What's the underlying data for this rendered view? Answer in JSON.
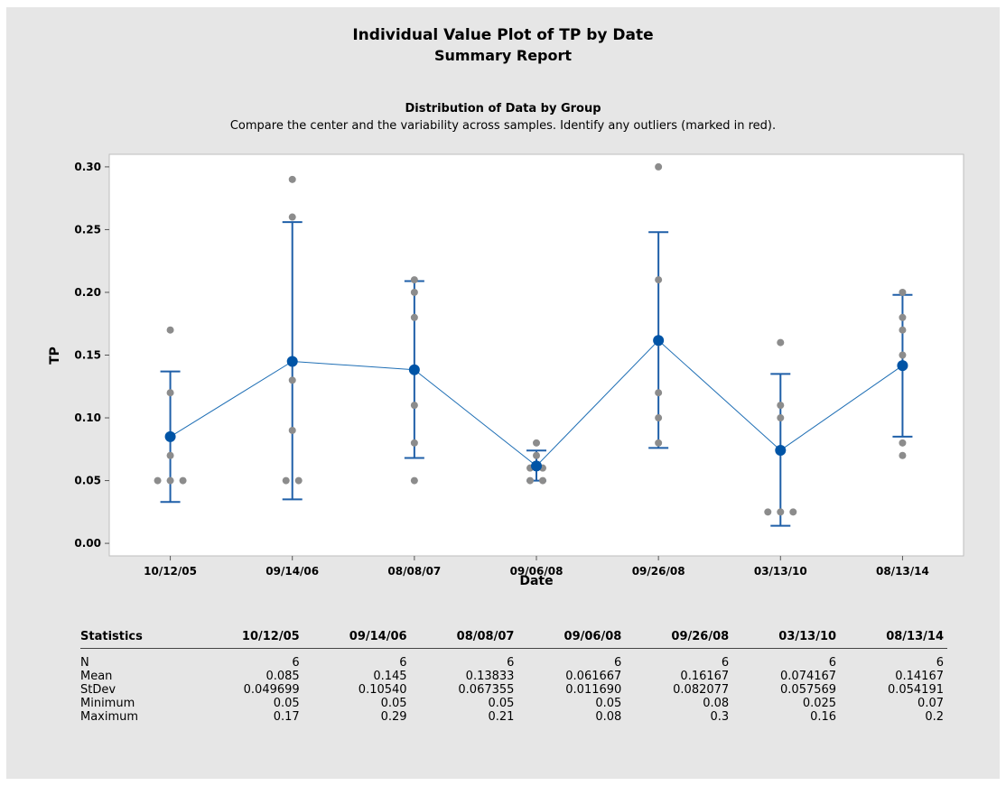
{
  "report": {
    "title": "Individual Value Plot of TP by Date",
    "subtitle": "Summary Report",
    "panel_title": "Distribution of Data by Group",
    "panel_subtitle": "Compare the center and the variability across samples. Identify any outliers (marked in red)."
  },
  "chart_data": {
    "type": "scatter",
    "xlabel": "Date",
    "ylabel": "TP",
    "ylim": [
      -0.01,
      0.31
    ],
    "yticks": [
      "0.00",
      "0.05",
      "0.10",
      "0.15",
      "0.20",
      "0.25",
      "0.30"
    ],
    "categories": [
      "10/12/05",
      "09/14/06",
      "08/08/07",
      "09/06/08",
      "09/26/08",
      "03/13/10",
      "08/13/14"
    ],
    "points": [
      [
        0.17,
        0.12,
        0.07,
        0.05,
        0.05,
        0.05
      ],
      [
        0.29,
        0.26,
        0.13,
        0.09,
        0.05,
        0.05
      ],
      [
        0.21,
        0.2,
        0.18,
        0.11,
        0.08,
        0.05
      ],
      [
        0.08,
        0.07,
        0.06,
        0.06,
        0.05,
        0.05
      ],
      [
        0.3,
        0.21,
        0.12,
        0.1,
        0.08,
        0.16
      ],
      [
        0.16,
        0.11,
        0.1,
        0.025,
        0.025,
        0.025
      ],
      [
        0.2,
        0.18,
        0.17,
        0.15,
        0.08,
        0.07
      ]
    ],
    "means": [
      0.085,
      0.145,
      0.13833,
      0.061667,
      0.16167,
      0.074167,
      0.14167
    ],
    "interval_low": [
      0.033,
      0.035,
      0.068,
      0.05,
      0.076,
      0.014,
      0.085
    ],
    "interval_high": [
      0.137,
      0.256,
      0.209,
      0.074,
      0.248,
      0.135,
      0.198
    ],
    "colors": {
      "points": "#8c8c8c",
      "mean": "#0054a6",
      "line": "#1f6fb5",
      "interval": "#1f5fa8"
    },
    "grid": false
  },
  "stats": {
    "header": "Statistics",
    "columns": [
      "10/12/05",
      "09/14/06",
      "08/08/07",
      "09/06/08",
      "09/26/08",
      "03/13/10",
      "08/13/14"
    ],
    "rows": [
      {
        "label": "N",
        "values": [
          "6",
          "6",
          "6",
          "6",
          "6",
          "6",
          "6"
        ]
      },
      {
        "label": "Mean",
        "values": [
          "0.085",
          "0.145",
          "0.13833",
          "0.061667",
          "0.16167",
          "0.074167",
          "0.14167"
        ]
      },
      {
        "label": "StDev",
        "values": [
          "0.049699",
          "0.10540",
          "0.067355",
          "0.011690",
          "0.082077",
          "0.057569",
          "0.054191"
        ]
      },
      {
        "label": "Minimum",
        "values": [
          "0.05",
          "0.05",
          "0.05",
          "0.05",
          "0.08",
          "0.025",
          "0.07"
        ]
      },
      {
        "label": "Maximum",
        "values": [
          "0.17",
          "0.29",
          "0.21",
          "0.08",
          "0.3",
          "0.16",
          "0.2"
        ]
      }
    ]
  }
}
